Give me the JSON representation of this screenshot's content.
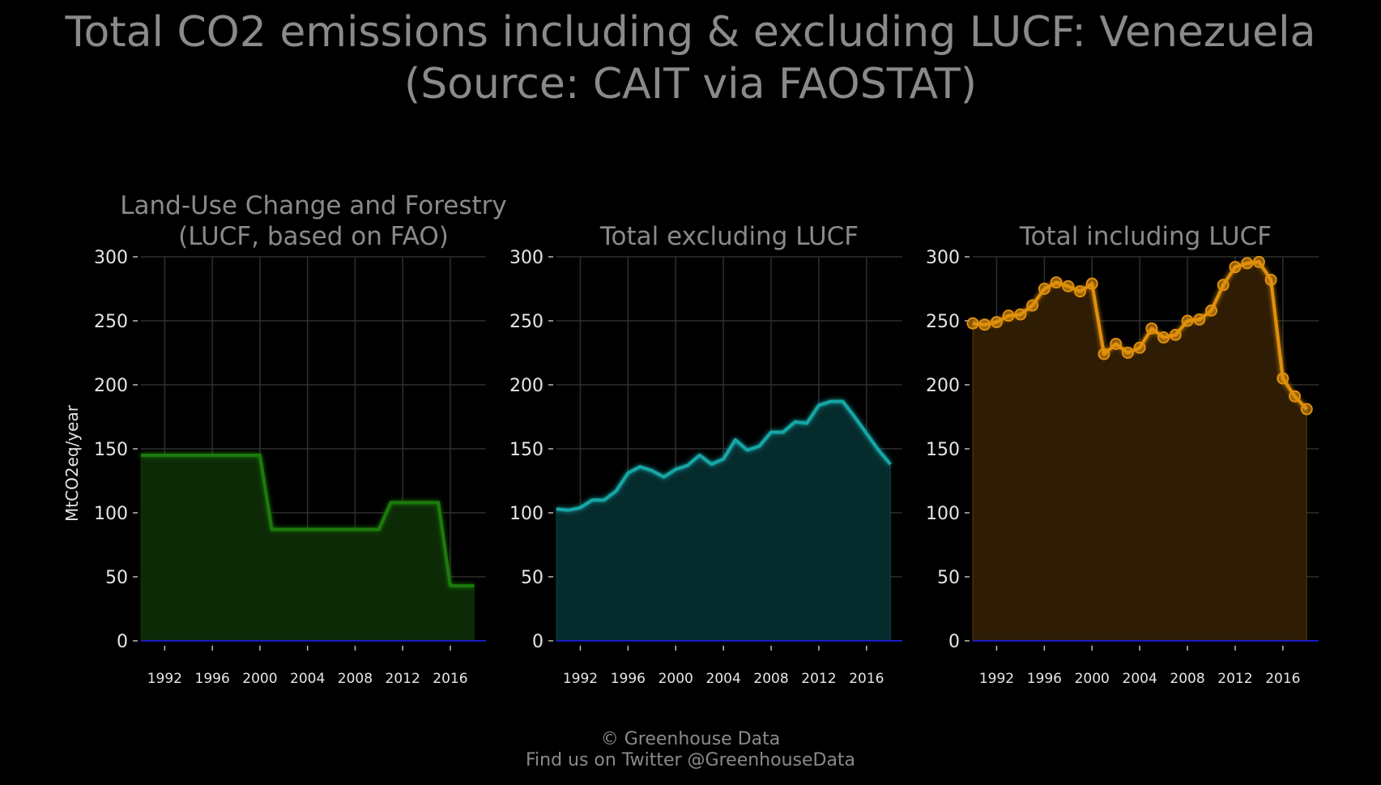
{
  "title": {
    "line1": "Total CO2 emissions including & excluding LUCF: Venezuela",
    "line2": "(Source: CAIT via FAOSTAT)"
  },
  "footer": {
    "line1": "© Greenhouse Data",
    "line2": "Find us on Twitter @GreenhouseData"
  },
  "ylabel": "MtCO2eq/year",
  "colors": {
    "background": "#000000",
    "grid": "#2e2e2e",
    "text": "#8a8a8a",
    "tick_text": "#e6e6e6",
    "zero_line": "#1a1aff"
  },
  "chart_data": [
    {
      "type": "area",
      "title_lines": [
        "Land-Use Change and Forestry",
        "(LUCF, based on FAO)"
      ],
      "color": "#1f7a0c",
      "fill": "#0c2a06",
      "markers": false,
      "xlim": [
        1990,
        2019
      ],
      "ylim": [
        0,
        300
      ],
      "xticks": [
        1992,
        1996,
        2000,
        2004,
        2008,
        2012,
        2016
      ],
      "yticks": [
        0,
        50,
        100,
        150,
        200,
        250,
        300
      ],
      "x": [
        1990,
        1991,
        1992,
        1993,
        1994,
        1995,
        1996,
        1997,
        1998,
        1999,
        2000,
        2001,
        2002,
        2003,
        2004,
        2005,
        2006,
        2007,
        2008,
        2009,
        2010,
        2011,
        2012,
        2013,
        2014,
        2015,
        2016,
        2017,
        2018
      ],
      "y": [
        145,
        145,
        145,
        145,
        145,
        145,
        145,
        145,
        145,
        145,
        145,
        87,
        87,
        87,
        87,
        87,
        87,
        87,
        87,
        87,
        87,
        108,
        108,
        108,
        108,
        108,
        43,
        43,
        43
      ]
    },
    {
      "type": "area",
      "title_lines": [
        "Total excluding LUCF"
      ],
      "color": "#19a6a6",
      "fill": "#062b2d",
      "markers": false,
      "xlim": [
        1990,
        2019
      ],
      "ylim": [
        0,
        300
      ],
      "xticks": [
        1992,
        1996,
        2000,
        2004,
        2008,
        2012,
        2016
      ],
      "yticks": [
        0,
        50,
        100,
        150,
        200,
        250,
        300
      ],
      "x": [
        1990,
        1991,
        1992,
        1993,
        1994,
        1995,
        1996,
        1997,
        1998,
        1999,
        2000,
        2001,
        2002,
        2003,
        2004,
        2005,
        2006,
        2007,
        2008,
        2009,
        2010,
        2011,
        2012,
        2013,
        2014,
        2015,
        2016,
        2017,
        2018
      ],
      "y": [
        103,
        102,
        104,
        110,
        110,
        117,
        131,
        136,
        133,
        128,
        134,
        137,
        145,
        138,
        142,
        157,
        149,
        152,
        163,
        163,
        171,
        170,
        184,
        187,
        187,
        175,
        162,
        149,
        138
      ]
    },
    {
      "type": "area",
      "title_lines": [
        "Total including LUCF"
      ],
      "color": "#e0900c",
      "fill": "#2e1c04",
      "markers": true,
      "xlim": [
        1990,
        2019
      ],
      "ylim": [
        0,
        300
      ],
      "xticks": [
        1992,
        1996,
        2000,
        2004,
        2008,
        2012,
        2016
      ],
      "yticks": [
        0,
        50,
        100,
        150,
        200,
        250,
        300
      ],
      "x": [
        1990,
        1991,
        1992,
        1993,
        1994,
        1995,
        1996,
        1997,
        1998,
        1999,
        2000,
        2001,
        2002,
        2003,
        2004,
        2005,
        2006,
        2007,
        2008,
        2009,
        2010,
        2011,
        2012,
        2013,
        2014,
        2015,
        2016,
        2017,
        2018
      ],
      "y": [
        248,
        247,
        249,
        254,
        255,
        262,
        275,
        280,
        277,
        273,
        279,
        224,
        232,
        225,
        229,
        244,
        237,
        239,
        250,
        251,
        258,
        278,
        292,
        295,
        296,
        282,
        205,
        191,
        181
      ]
    }
  ]
}
